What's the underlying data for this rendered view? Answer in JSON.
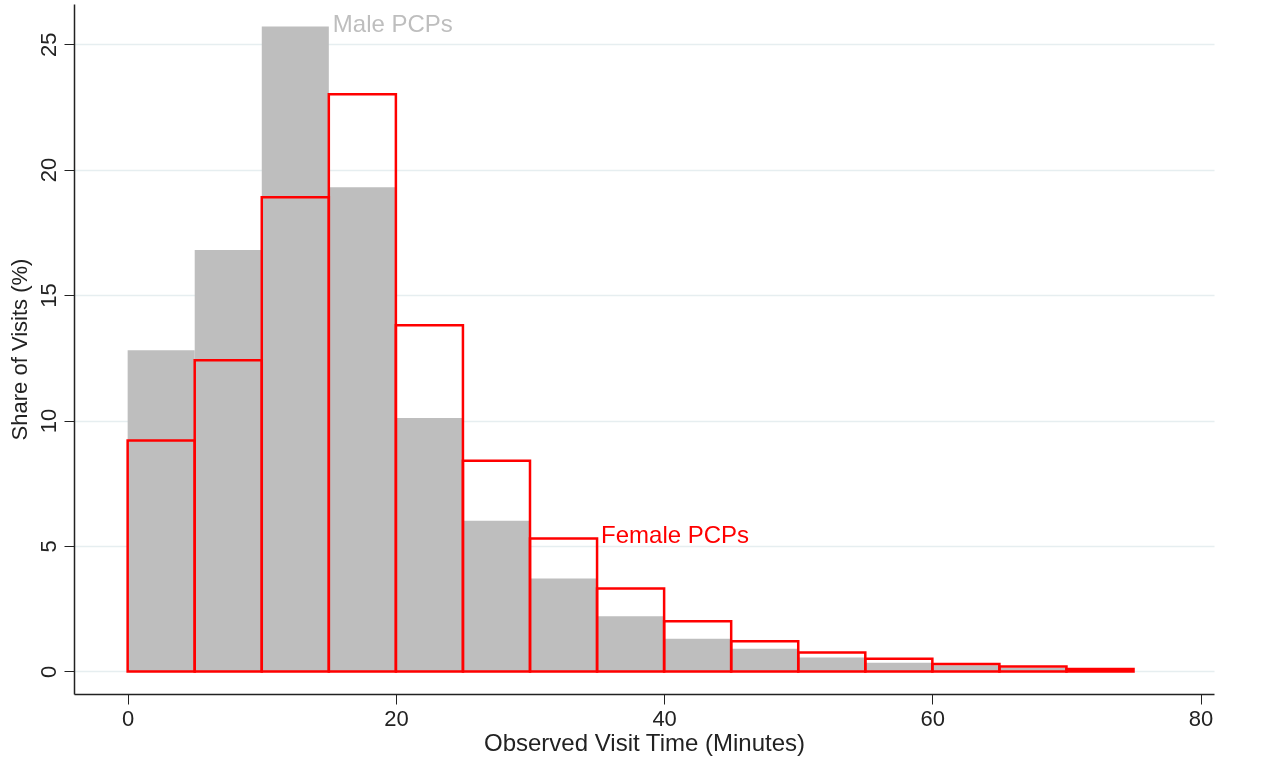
{
  "chart_data": {
    "type": "histogram",
    "xlabel": "Observed Visit Time (Minutes)",
    "ylabel": "Share of Visits (%)",
    "bins": [
      0,
      5,
      10,
      15,
      20,
      25,
      30,
      35,
      40,
      45,
      50,
      55,
      60,
      65,
      70,
      75
    ],
    "series": [
      {
        "color": "#bebebe",
        "values": [
          12.8,
          16.8,
          25.7,
          19.3,
          10.1,
          6.0,
          3.7,
          2.2,
          1.3,
          0.9,
          0.55,
          0.35,
          0.25,
          0.15,
          null
        ]
      },
      {
        "color": "#ff0000",
        "values": [
          9.2,
          12.4,
          18.9,
          23.0,
          13.8,
          8.4,
          5.3,
          3.3,
          2.0,
          1.2,
          0.75,
          0.5,
          0.3,
          0.2,
          0.1
        ]
      }
    ],
    "annotations": [
      {
        "text": "Male PCPs",
        "x": 15,
        "y": 25.7
      },
      {
        "text": "Female PCPs",
        "x": 35,
        "y": 5.3
      }
    ],
    "xlim": [
      -4,
      81
    ],
    "ylim": [
      -0.9,
      26.6
    ],
    "xticks": [
      0,
      20,
      40,
      60,
      80
    ],
    "yticks": [
      0,
      5,
      10,
      15,
      20,
      25
    ],
    "grid": "y"
  }
}
